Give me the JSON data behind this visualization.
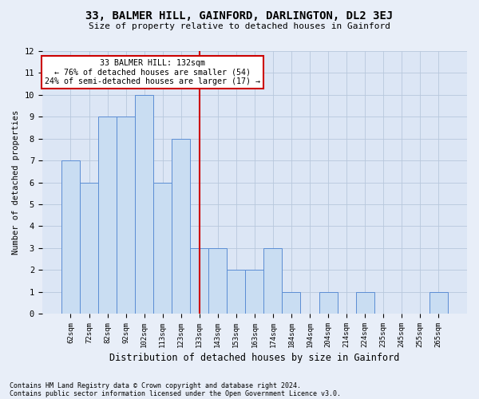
{
  "title": "33, BALMER HILL, GAINFORD, DARLINGTON, DL2 3EJ",
  "subtitle": "Size of property relative to detached houses in Gainford",
  "xlabel": "Distribution of detached houses by size in Gainford",
  "ylabel": "Number of detached properties",
  "categories": [
    "62sqm",
    "72sqm",
    "82sqm",
    "92sqm",
    "102sqm",
    "113sqm",
    "123sqm",
    "133sqm",
    "143sqm",
    "153sqm",
    "163sqm",
    "174sqm",
    "184sqm",
    "194sqm",
    "204sqm",
    "214sqm",
    "224sqm",
    "235sqm",
    "245sqm",
    "255sqm",
    "265sqm"
  ],
  "values": [
    7,
    6,
    9,
    9,
    10,
    6,
    8,
    3,
    3,
    2,
    2,
    3,
    1,
    0,
    1,
    0,
    1,
    0,
    0,
    0,
    1
  ],
  "bar_color": "#c9ddf2",
  "bar_edge_color": "#5b8dd4",
  "highlight_index": 7,
  "highlight_line_color": "#cc0000",
  "annotation_text": "33 BALMER HILL: 132sqm\n← 76% of detached houses are smaller (54)\n24% of semi-detached houses are larger (17) →",
  "annotation_box_color": "#ffffff",
  "annotation_box_edge_color": "#cc0000",
  "ylim": [
    0,
    12
  ],
  "yticks": [
    0,
    1,
    2,
    3,
    4,
    5,
    6,
    7,
    8,
    9,
    10,
    11,
    12
  ],
  "footnote1": "Contains HM Land Registry data © Crown copyright and database right 2024.",
  "footnote2": "Contains public sector information licensed under the Open Government Licence v3.0.",
  "bg_color": "#e8eef8",
  "plot_bg_color": "#dce6f5"
}
